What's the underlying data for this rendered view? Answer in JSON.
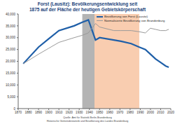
{
  "chart_data": {
    "type": "line",
    "title": "Forst (Lausitz): Bevölkerungsentwicklung seit 1875 auf der Fläche der heutigen Gebietskörperschaft",
    "x": [
      1875,
      1890,
      1900,
      1910,
      1925,
      1933,
      1939,
      1946,
      1950,
      1964,
      1971,
      1981,
      1989,
      1995,
      2000,
      2005,
      2010,
      2015,
      2018
    ],
    "series": [
      {
        "name": "Bevölkerung von Forst (Lausitz)",
        "color": "#1f5fa8",
        "values": [
          19000,
          26000,
          29500,
          33000,
          35000,
          36500,
          37500,
          29000,
          30000,
          29000,
          28500,
          27500,
          26000,
          25000,
          23000,
          21000,
          19500,
          18000,
          17500
        ]
      },
      {
        "name": "Normalisierte Bevölkerung von Brandenburg",
        "color": "#9a9a9a",
        "values": [
          19000,
          23000,
          25500,
          28000,
          30000,
          31000,
          32000,
          36000,
          34500,
          33000,
          33000,
          33000,
          32500,
          32000,
          34000,
          33500,
          33000,
          33000,
          33500
        ]
      }
    ],
    "periods": [
      {
        "start": 1933,
        "end": 1945,
        "color": "#b4b4b4"
      },
      {
        "start": 1945,
        "end": 1989,
        "color": "#f9cdb0"
      }
    ],
    "xlim": [
      1870,
      2020
    ],
    "xticks": [
      1870,
      1880,
      1890,
      1900,
      1910,
      1920,
      1930,
      1940,
      1950,
      1960,
      1970,
      1980,
      1990,
      2000,
      2010,
      2020
    ],
    "ylim": [
      0,
      40000
    ],
    "yticks": [
      0,
      {
        "value": 5000,
        "label": "5,000"
      },
      {
        "value": 10000,
        "label": "10,000"
      },
      {
        "value": 15000,
        "label": "15,000"
      },
      {
        "value": 20000,
        "label": "20,000"
      },
      {
        "value": 25000,
        "label": "25,000"
      },
      {
        "value": 30000,
        "label": "30,000"
      },
      {
        "value": 35000,
        "label": "35,000"
      },
      {
        "value": 40000,
        "label": "40,000"
      }
    ],
    "footer": [
      "Quelle: Amt für Statistik Berlin-Brandenburg",
      "Historische Gemeindestatistik und Bevölkerung des Landes Brandenburg"
    ]
  }
}
